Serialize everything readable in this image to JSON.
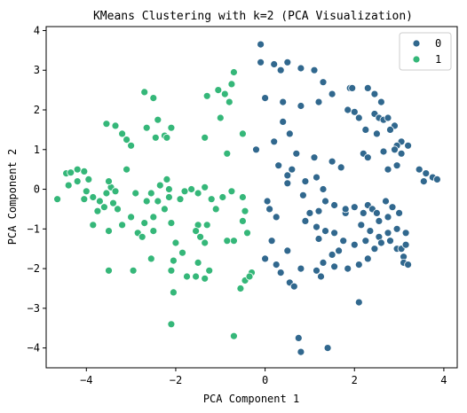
{
  "chart_data": {
    "type": "scatter",
    "title": "KMeans Clustering with k=2 (PCA Visualization)",
    "xlabel": "PCA Component 1",
    "ylabel": "PCA Component 2",
    "xlim": [
      -4.9,
      4.3
    ],
    "ylim": [
      -4.5,
      4.1
    ],
    "xticks": [
      -4,
      -2,
      0,
      2,
      4
    ],
    "yticks": [
      -4,
      -3,
      -2,
      -1,
      0,
      1,
      2,
      3,
      4
    ],
    "legend": {
      "placement": "top-right",
      "entries": [
        "0",
        "1"
      ]
    },
    "grid": false,
    "series": [
      {
        "name": "0",
        "color": "#31688e",
        "points": [
          [
            -0.1,
            3.65
          ],
          [
            -0.1,
            3.2
          ],
          [
            0.2,
            3.15
          ],
          [
            0.35,
            3.0
          ],
          [
            0.5,
            3.2
          ],
          [
            0.8,
            3.05
          ],
          [
            1.1,
            3.0
          ],
          [
            1.3,
            2.7
          ],
          [
            0.0,
            2.3
          ],
          [
            0.4,
            2.2
          ],
          [
            0.8,
            2.1
          ],
          [
            1.2,
            2.2
          ],
          [
            1.5,
            2.4
          ],
          [
            1.9,
            2.55
          ],
          [
            1.95,
            2.55
          ],
          [
            2.3,
            2.55
          ],
          [
            2.45,
            2.4
          ],
          [
            2.6,
            2.2
          ],
          [
            1.85,
            2.0
          ],
          [
            2.0,
            1.95
          ],
          [
            2.1,
            1.8
          ],
          [
            2.25,
            1.5
          ],
          [
            2.45,
            1.9
          ],
          [
            2.55,
            1.8
          ],
          [
            2.65,
            1.75
          ],
          [
            2.75,
            1.8
          ],
          [
            2.9,
            1.6
          ],
          [
            2.8,
            1.5
          ],
          [
            2.5,
            1.4
          ],
          [
            3.05,
            1.2
          ],
          [
            2.95,
            1.1
          ],
          [
            2.9,
            1.0
          ],
          [
            3.2,
            1.1
          ],
          [
            3.05,
            0.9
          ],
          [
            2.2,
            0.9
          ],
          [
            2.65,
            0.95
          ],
          [
            2.3,
            0.8
          ],
          [
            2.75,
            0.5
          ],
          [
            2.95,
            0.6
          ],
          [
            3.45,
            0.5
          ],
          [
            3.6,
            0.4
          ],
          [
            3.75,
            0.3
          ],
          [
            3.85,
            0.25
          ],
          [
            3.55,
            0.2
          ],
          [
            0.55,
            1.4
          ],
          [
            0.4,
            1.7
          ],
          [
            0.2,
            1.2
          ],
          [
            -0.2,
            1.0
          ],
          [
            0.7,
            0.9
          ],
          [
            0.6,
            0.5
          ],
          [
            0.3,
            0.6
          ],
          [
            1.1,
            0.8
          ],
          [
            1.5,
            0.7
          ],
          [
            1.7,
            0.55
          ],
          [
            0.5,
            0.35
          ],
          [
            0.9,
            0.2
          ],
          [
            1.15,
            0.3
          ],
          [
            1.3,
            0.0
          ],
          [
            0.5,
            0.15
          ],
          [
            0.05,
            -0.3
          ],
          [
            0.1,
            -0.5
          ],
          [
            0.25,
            -0.7
          ],
          [
            0.85,
            -0.15
          ],
          [
            1.35,
            -0.3
          ],
          [
            1.2,
            -0.55
          ],
          [
            1.55,
            -0.4
          ],
          [
            1.8,
            -0.6
          ],
          [
            1.0,
            -0.6
          ],
          [
            0.9,
            -0.8
          ],
          [
            1.15,
            -0.95
          ],
          [
            1.35,
            -1.05
          ],
          [
            1.2,
            -1.25
          ],
          [
            1.55,
            -1.1
          ],
          [
            1.8,
            -0.5
          ],
          [
            2.0,
            -0.45
          ],
          [
            2.2,
            -0.6
          ],
          [
            2.3,
            -0.4
          ],
          [
            2.4,
            -0.5
          ],
          [
            2.5,
            -0.6
          ],
          [
            2.7,
            -0.3
          ],
          [
            2.85,
            -0.45
          ],
          [
            3.0,
            -0.6
          ],
          [
            2.75,
            -0.7
          ],
          [
            2.55,
            -0.8
          ],
          [
            2.15,
            -0.9
          ],
          [
            2.35,
            -1.05
          ],
          [
            2.55,
            -1.2
          ],
          [
            2.75,
            -1.1
          ],
          [
            2.95,
            -1.0
          ],
          [
            3.15,
            -1.1
          ],
          [
            2.6,
            -1.35
          ],
          [
            2.8,
            -1.3
          ],
          [
            2.95,
            -1.5
          ],
          [
            3.05,
            -1.5
          ],
          [
            3.15,
            -1.4
          ],
          [
            2.45,
            -1.5
          ],
          [
            2.25,
            -1.3
          ],
          [
            2.0,
            -1.4
          ],
          [
            1.75,
            -1.3
          ],
          [
            1.65,
            -1.55
          ],
          [
            1.5,
            -1.65
          ],
          [
            1.3,
            -1.85
          ],
          [
            1.55,
            -1.95
          ],
          [
            1.85,
            -2.0
          ],
          [
            2.1,
            -1.9
          ],
          [
            2.3,
            -1.75
          ],
          [
            3.1,
            -1.7
          ],
          [
            3.1,
            -1.85
          ],
          [
            3.2,
            -1.9
          ],
          [
            1.15,
            -2.05
          ],
          [
            1.25,
            -2.2
          ],
          [
            0.8,
            -2.0
          ],
          [
            0.35,
            -2.1
          ],
          [
            0.55,
            -2.35
          ],
          [
            0.65,
            -2.45
          ],
          [
            0.0,
            -1.75
          ],
          [
            0.15,
            -1.3
          ],
          [
            0.25,
            -1.9
          ],
          [
            0.5,
            -1.55
          ],
          [
            2.1,
            -2.85
          ],
          [
            0.75,
            -3.75
          ],
          [
            0.8,
            -4.1
          ],
          [
            1.4,
            -4.0
          ]
        ]
      },
      {
        "name": "1",
        "color": "#35b779",
        "points": [
          [
            -4.65,
            -0.25
          ],
          [
            -4.45,
            0.4
          ],
          [
            -4.35,
            0.42
          ],
          [
            -4.2,
            0.5
          ],
          [
            -4.05,
            0.45
          ],
          [
            -4.2,
            0.2
          ],
          [
            -4.4,
            0.1
          ],
          [
            -3.95,
            0.25
          ],
          [
            -4.0,
            -0.05
          ],
          [
            -3.85,
            -0.2
          ],
          [
            -4.05,
            -0.25
          ],
          [
            -3.7,
            -0.3
          ],
          [
            -3.55,
            -0.1
          ],
          [
            -3.45,
            0.05
          ],
          [
            -3.5,
            0.2
          ],
          [
            -3.35,
            -0.05
          ],
          [
            -3.4,
            -0.35
          ],
          [
            -3.3,
            -0.5
          ],
          [
            -3.6,
            -0.45
          ],
          [
            -3.5,
            -1.05
          ],
          [
            -3.55,
            1.65
          ],
          [
            -3.35,
            1.6
          ],
          [
            -3.2,
            1.4
          ],
          [
            -3.1,
            1.25
          ],
          [
            -3.0,
            1.1
          ],
          [
            -3.1,
            0.5
          ],
          [
            -3.0,
            -0.7
          ],
          [
            -3.2,
            -0.9
          ],
          [
            -2.85,
            -1.1
          ],
          [
            -2.7,
            -0.85
          ],
          [
            -2.5,
            -0.7
          ],
          [
            -2.5,
            -1.05
          ],
          [
            -2.75,
            -1.2
          ],
          [
            -2.9,
            -0.1
          ],
          [
            -2.65,
            -0.3
          ],
          [
            -2.55,
            -0.1
          ],
          [
            -2.4,
            -0.3
          ],
          [
            -2.25,
            -0.5
          ],
          [
            -2.1,
            -0.85
          ],
          [
            -2.15,
            -0.2
          ],
          [
            -2.35,
            0.1
          ],
          [
            -2.2,
            0.25
          ],
          [
            -2.15,
            0.0
          ],
          [
            -1.9,
            -0.25
          ],
          [
            -1.8,
            -0.05
          ],
          [
            -1.65,
            0.0
          ],
          [
            -1.5,
            -0.1
          ],
          [
            -1.35,
            0.05
          ],
          [
            -1.2,
            -0.25
          ],
          [
            -1.1,
            -0.5
          ],
          [
            -0.95,
            -0.2
          ],
          [
            -0.75,
            -0.05
          ],
          [
            -0.5,
            -0.2
          ],
          [
            -0.45,
            -0.55
          ],
          [
            -0.5,
            -0.8
          ],
          [
            -0.4,
            -1.1
          ],
          [
            -0.7,
            -1.3
          ],
          [
            -0.85,
            -1.3
          ],
          [
            -1.3,
            -0.9
          ],
          [
            -1.5,
            -0.9
          ],
          [
            -1.55,
            -1.05
          ],
          [
            -1.45,
            -1.2
          ],
          [
            -1.35,
            -1.35
          ],
          [
            -2.0,
            -1.35
          ],
          [
            -1.85,
            -1.6
          ],
          [
            -1.5,
            -1.85
          ],
          [
            -1.25,
            -2.05
          ],
          [
            -1.55,
            -2.2
          ],
          [
            -1.35,
            -2.25
          ],
          [
            -1.75,
            -2.2
          ],
          [
            -2.05,
            -1.8
          ],
          [
            -2.1,
            -2.05
          ],
          [
            -2.55,
            -1.75
          ],
          [
            -3.5,
            -2.05
          ],
          [
            -2.95,
            -2.05
          ],
          [
            -2.05,
            -2.6
          ],
          [
            -2.1,
            -3.4
          ],
          [
            -0.7,
            -3.7
          ],
          [
            -0.3,
            -2.1
          ],
          [
            -0.45,
            -2.3
          ],
          [
            -0.55,
            -2.5
          ],
          [
            -0.35,
            -2.2
          ],
          [
            -2.7,
            2.45
          ],
          [
            -2.5,
            2.3
          ],
          [
            -2.4,
            1.75
          ],
          [
            -2.65,
            1.55
          ],
          [
            -2.45,
            1.3
          ],
          [
            -2.25,
            1.35
          ],
          [
            -2.1,
            1.55
          ],
          [
            -2.2,
            1.3
          ],
          [
            -1.35,
            1.3
          ],
          [
            -1.3,
            2.35
          ],
          [
            -1.05,
            2.5
          ],
          [
            -0.9,
            2.4
          ],
          [
            -0.8,
            2.2
          ],
          [
            -0.75,
            2.65
          ],
          [
            -0.7,
            2.95
          ],
          [
            -0.5,
            1.4
          ],
          [
            -1.0,
            1.8
          ],
          [
            -0.85,
            0.9
          ],
          [
            -3.85,
            -0.9
          ],
          [
            -3.75,
            -0.55
          ]
        ]
      }
    ]
  }
}
